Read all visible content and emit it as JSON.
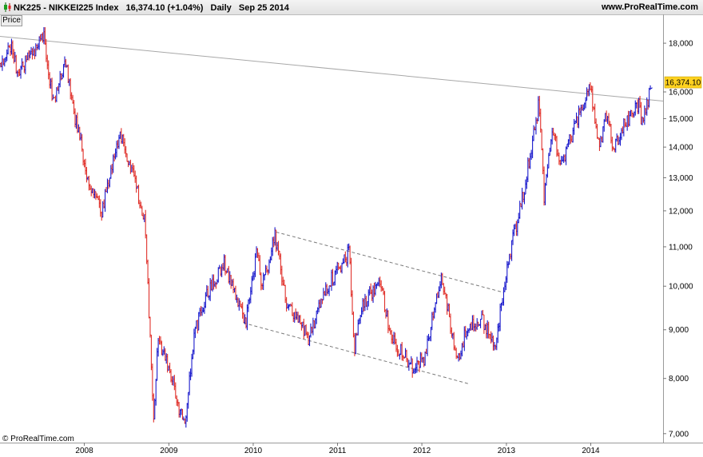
{
  "header": {
    "symbol": "NK225 - NIKKEI225 Index",
    "last_price": "16,374.10 (+1.04%)",
    "period": "Daily",
    "date": "Sep 25 2014",
    "site": "www.ProRealTime.com"
  },
  "price_tab": "Price",
  "copyright": "© ProRealTime.com",
  "colors": {
    "up": "#1a1acc",
    "down": "#e0302a",
    "badge": "#ffd21f",
    "trend": "#a8a8a8",
    "channel": "#7a7a7a"
  },
  "chart_data": {
    "type": "bar",
    "price_badge": "16,374.10",
    "y_scale": "log",
    "ylim": [
      6850,
      19300
    ],
    "y_ticks": [
      {
        "value": 7000,
        "label": "7,000"
      },
      {
        "value": 8000,
        "label": "8,000"
      },
      {
        "value": 9000,
        "label": "9,000"
      },
      {
        "value": 10000,
        "label": "10,000"
      },
      {
        "value": 11000,
        "label": "11,000"
      },
      {
        "value": 12000,
        "label": "12,000"
      },
      {
        "value": 13000,
        "label": "13,000"
      },
      {
        "value": 14000,
        "label": "14,000"
      },
      {
        "value": 15000,
        "label": "15,000"
      },
      {
        "value": 16000,
        "label": "16,000"
      },
      {
        "value": 18000,
        "label": "18,000"
      }
    ],
    "xlim": [
      "2007-01-01",
      "2014-11-10"
    ],
    "x_ticks": [
      {
        "date": "2008-01-01",
        "label": "2008"
      },
      {
        "date": "2009-01-01",
        "label": "2009"
      },
      {
        "date": "2010-01-01",
        "label": "2010"
      },
      {
        "date": "2011-01-01",
        "label": "2011"
      },
      {
        "date": "2012-01-01",
        "label": "2012"
      },
      {
        "date": "2013-01-01",
        "label": "2013"
      },
      {
        "date": "2014-01-01",
        "label": "2014"
      }
    ],
    "price_path": [
      [
        "2007-01-01",
        16900
      ],
      [
        "2007-02-20",
        17900
      ],
      [
        "2007-03-20",
        16700
      ],
      [
        "2007-05-15",
        17600
      ],
      [
        "2007-07-10",
        18200
      ],
      [
        "2007-08-20",
        15500
      ],
      [
        "2007-10-10",
        17300
      ],
      [
        "2007-11-20",
        15100
      ],
      [
        "2008-01-20",
        12900
      ],
      [
        "2008-03-15",
        11900
      ],
      [
        "2008-05-10",
        13800
      ],
      [
        "2008-06-10",
        14400
      ],
      [
        "2008-08-01",
        13000
      ],
      [
        "2008-09-20",
        11700
      ],
      [
        "2008-10-27",
        7200
      ],
      [
        "2008-11-15",
        8800
      ],
      [
        "2008-12-20",
        8400
      ],
      [
        "2009-03-10",
        7100
      ],
      [
        "2009-04-20",
        8900
      ],
      [
        "2009-06-15",
        9800
      ],
      [
        "2009-08-30",
        10600
      ],
      [
        "2009-11-27",
        9100
      ],
      [
        "2010-01-15",
        10800
      ],
      [
        "2010-02-10",
        10000
      ],
      [
        "2010-04-05",
        11300
      ],
      [
        "2010-05-25",
        9600
      ],
      [
        "2010-07-01",
        9300
      ],
      [
        "2010-08-30",
        8800
      ],
      [
        "2010-10-10",
        9500
      ],
      [
        "2010-11-25",
        10100
      ],
      [
        "2011-02-20",
        10850
      ],
      [
        "2011-03-15",
        8600
      ],
      [
        "2011-04-20",
        9600
      ],
      [
        "2011-07-08",
        10100
      ],
      [
        "2011-08-20",
        8800
      ],
      [
        "2011-11-25",
        8200
      ],
      [
        "2012-01-10",
        8400
      ],
      [
        "2012-03-25",
        10200
      ],
      [
        "2012-04-20",
        9500
      ],
      [
        "2012-06-04",
        8300
      ],
      [
        "2012-07-10",
        9000
      ],
      [
        "2012-09-20",
        9200
      ],
      [
        "2012-11-14",
        8700
      ],
      [
        "2013-01-15",
        10800
      ],
      [
        "2013-03-15",
        12500
      ],
      [
        "2013-05-22",
        15600
      ],
      [
        "2013-06-13",
        12400
      ],
      [
        "2013-07-20",
        14600
      ],
      [
        "2013-08-25",
        13400
      ],
      [
        "2013-10-15",
        14500
      ],
      [
        "2013-12-30",
        16300
      ],
      [
        "2014-02-05",
        14000
      ],
      [
        "2014-03-10",
        15100
      ],
      [
        "2014-04-11",
        13900
      ],
      [
        "2014-06-01",
        14900
      ],
      [
        "2014-07-30",
        15600
      ],
      [
        "2014-08-10",
        14800
      ],
      [
        "2014-09-25",
        16374
      ]
    ],
    "trendlines": [
      {
        "kind": "solid",
        "from": [
          "2007-01-01",
          18300
        ],
        "to": [
          "2014-11-10",
          15650
        ]
      },
      {
        "kind": "dashed",
        "from": [
          "2010-04-10",
          11400
        ],
        "to": [
          "2012-12-20",
          9850
        ]
      },
      {
        "kind": "dashed",
        "from": [
          "2009-11-20",
          9150
        ],
        "to": [
          "2012-07-20",
          7900
        ]
      }
    ]
  }
}
